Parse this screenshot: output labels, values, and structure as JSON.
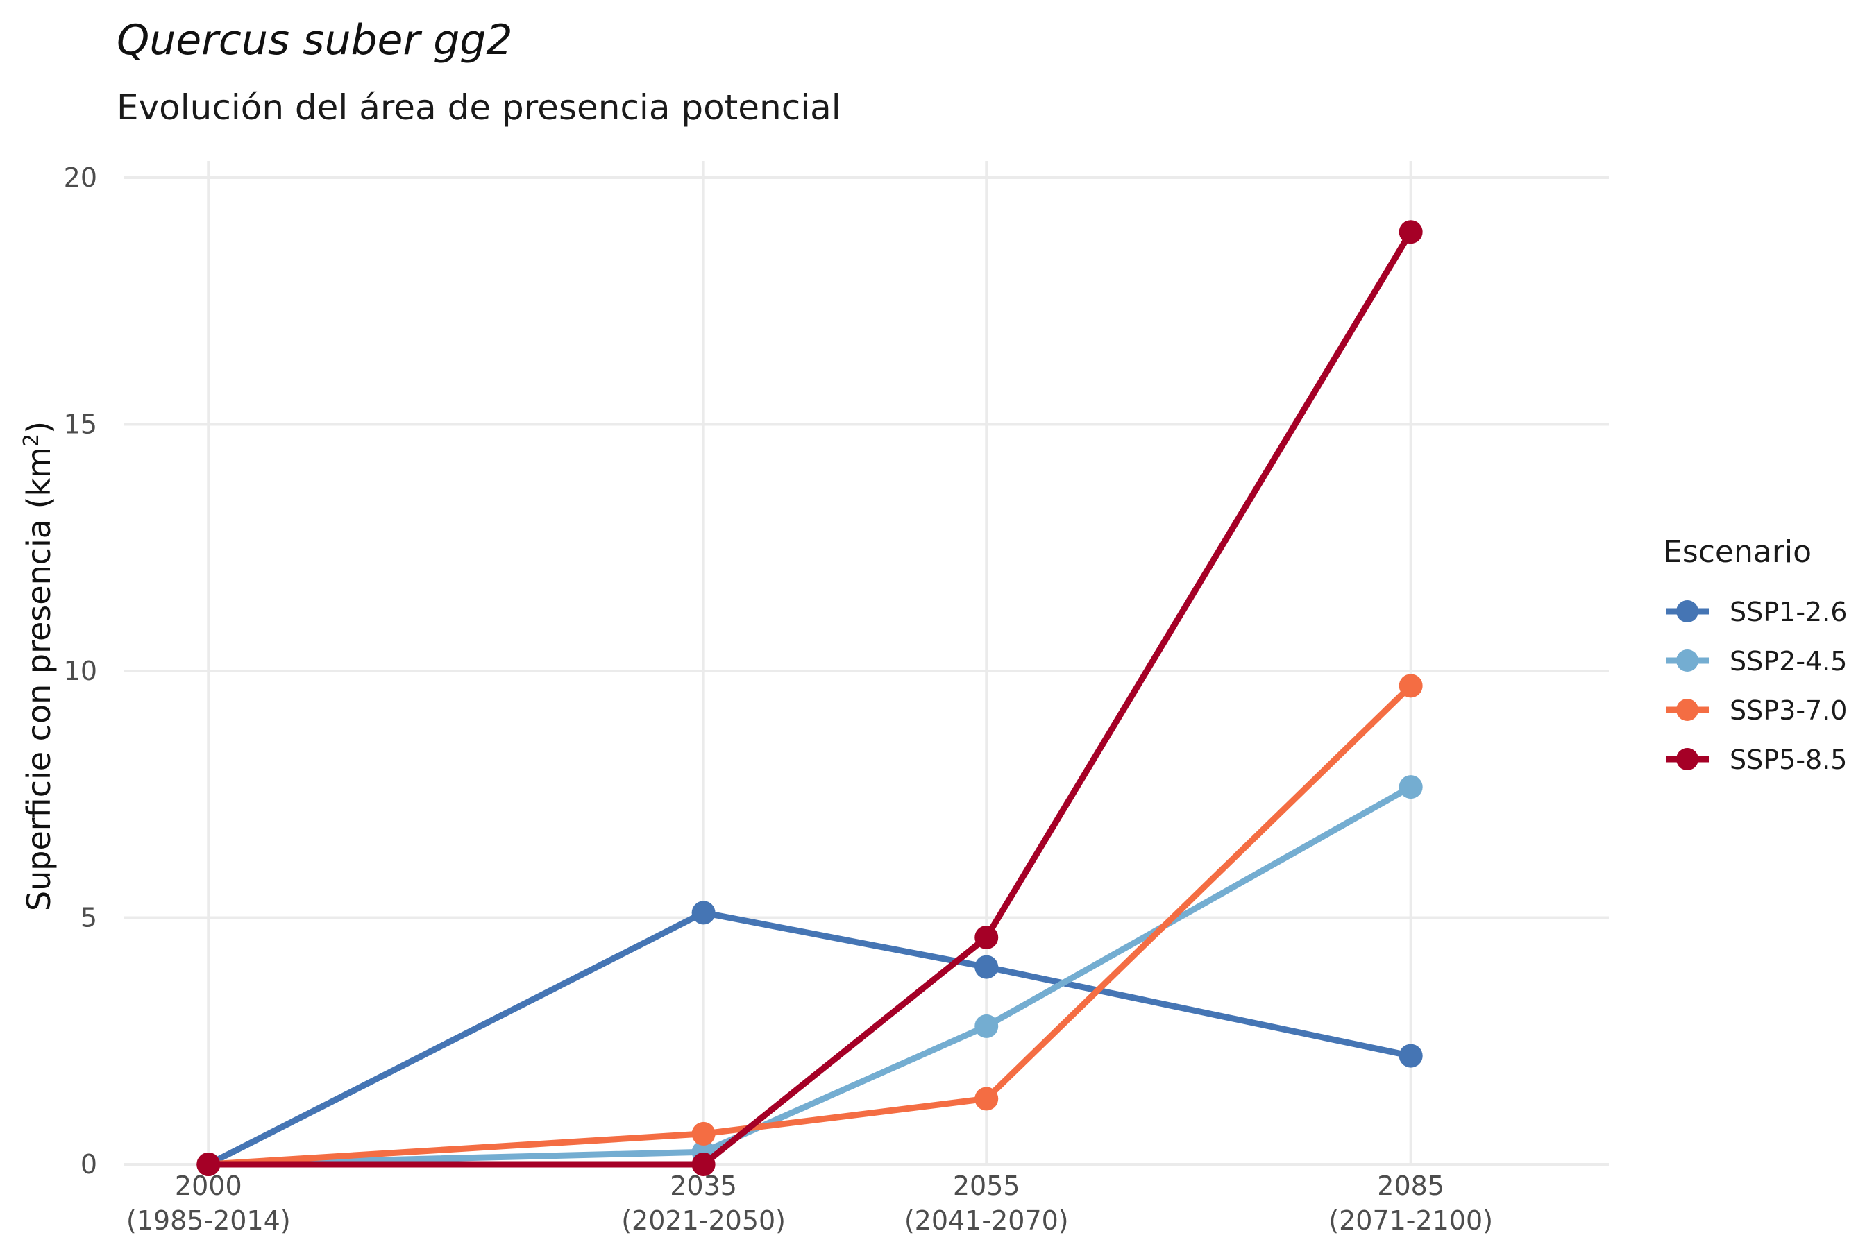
{
  "chart_data": {
    "type": "line",
    "title": "Quercus suber gg2",
    "subtitle": "Evolución del área de presencia potencial",
    "ylabel_main": "Superficie con presencia (km",
    "ylabel_sup": "2",
    "ylabel_end": ")",
    "x": [
      2000,
      2035,
      2055,
      2085
    ],
    "x_tick_labels": [
      {
        "year": "2000",
        "period": "(1985-2014)"
      },
      {
        "year": "2035",
        "period": "(2021-2050)"
      },
      {
        "year": "2055",
        "period": "(2041-2070)"
      },
      {
        "year": "2085",
        "period": "(2071-2100)"
      }
    ],
    "xlim": [
      1994,
      2099
    ],
    "ylim": [
      0,
      20
    ],
    "y_ticks": [
      0,
      5,
      10,
      15,
      20
    ],
    "grid": true,
    "legend": {
      "title": "Escenario",
      "position": "right"
    },
    "series": [
      {
        "name": "SSP1-2.6",
        "color": "#4575b4",
        "values": [
          0,
          5.1,
          4.0,
          2.2
        ]
      },
      {
        "name": "SSP2-4.5",
        "color": "#74add1",
        "values": [
          0,
          0.25,
          2.8,
          7.65
        ]
      },
      {
        "name": "SSP3-7.0",
        "color": "#f46d43",
        "values": [
          0,
          0.62,
          1.33,
          9.7
        ]
      },
      {
        "name": "SSP5-8.5",
        "color": "#a50026",
        "values": [
          0,
          0,
          4.6,
          18.9
        ]
      }
    ]
  }
}
